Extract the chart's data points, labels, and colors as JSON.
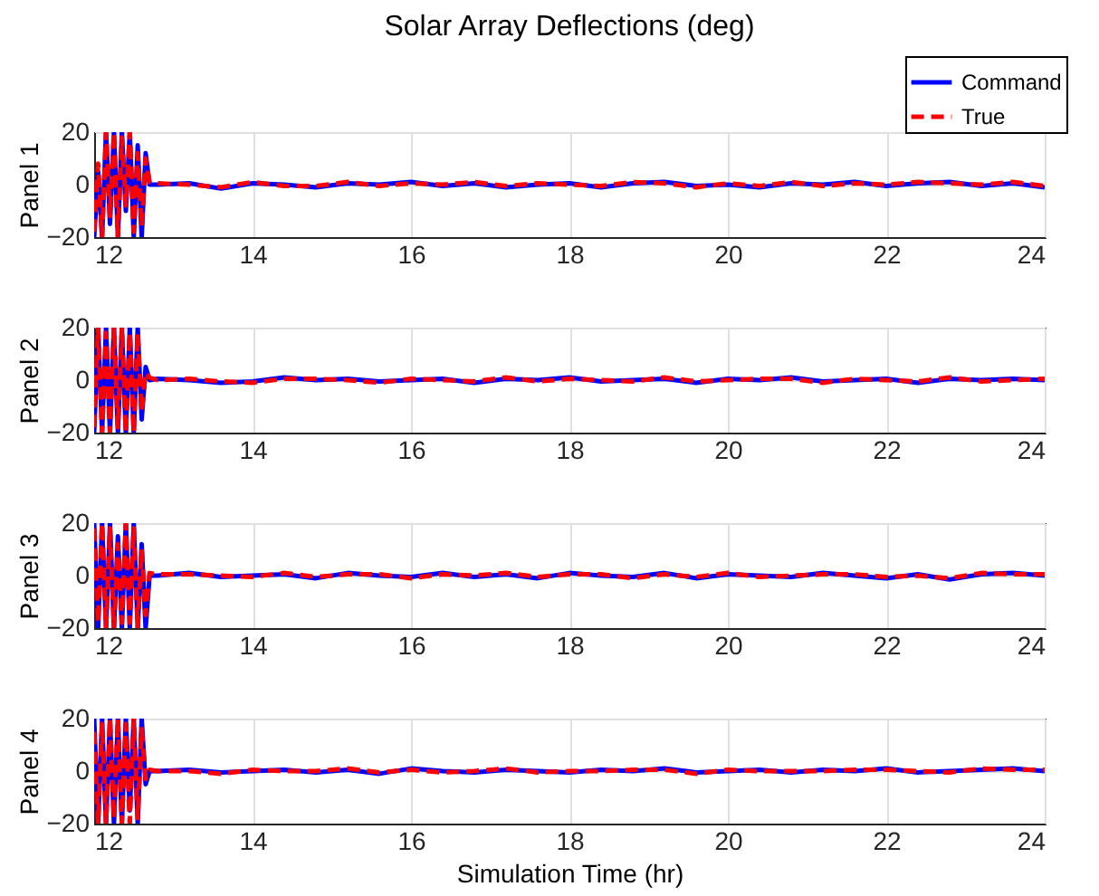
{
  "chart_data": [
    {
      "type": "line",
      "title": "Solar Array Deflections (deg)",
      "ylabel": "Panel 1",
      "legend": "top right",
      "grid": true,
      "xlim": [
        12,
        24
      ],
      "xticks": [
        12,
        14,
        16,
        18,
        20,
        22,
        24
      ],
      "ylim": [
        -20,
        20
      ],
      "yticks": [
        -20,
        0,
        20
      ],
      "x": [
        12,
        12.05,
        12.1,
        12.15,
        12.2,
        12.25,
        12.3,
        12.35,
        12.4,
        12.45,
        12.5,
        12.55,
        12.6,
        12.65,
        12.7,
        12.8,
        13.2,
        13.6,
        14,
        14.4,
        14.8,
        15.2,
        15.6,
        16,
        16.4,
        16.8,
        17.2,
        17.6,
        18,
        18.4,
        18.8,
        19.2,
        19.6,
        20,
        20.4,
        20.8,
        21.2,
        21.6,
        22,
        22.4,
        22.8,
        23.2,
        23.6,
        24
      ],
      "series": [
        {
          "name": "Command",
          "color": "#0000ff",
          "line_style": "solid",
          "values": [
            -20,
            5,
            -20,
            20,
            -15,
            20,
            -20,
            20,
            -10,
            20,
            -20,
            15,
            -20,
            12,
            0,
            0,
            0.5,
            -1.5,
            0.5,
            0,
            -1,
            0.5,
            0,
            1,
            -0.5,
            0.5,
            -1,
            0,
            0.5,
            -1,
            0.5,
            1,
            -0.5,
            0,
            -1,
            0.5,
            0,
            1,
            -0.5,
            0.5,
            1,
            -0.5,
            0.5,
            -1
          ]
        },
        {
          "name": "True",
          "color": "#ff0000",
          "line_style": "dashed",
          "values": [
            -18,
            8,
            -20,
            20,
            -12,
            20,
            -20,
            18,
            -8,
            20,
            -18,
            12,
            -16,
            10,
            1,
            0.5,
            0,
            -1,
            1,
            -0.5,
            -0.5,
            1,
            -0.5,
            0.5,
            0,
            1,
            -0.5,
            0.5,
            0,
            -0.5,
            1,
            0.5,
            -1,
            0.5,
            -0.5,
            1,
            -0.5,
            0.5,
            0,
            1,
            0.5,
            0,
            1,
            -0.5
          ]
        }
      ]
    },
    {
      "type": "line",
      "ylabel": "Panel 2",
      "grid": true,
      "xlim": [
        12,
        24
      ],
      "xticks": [
        12,
        14,
        16,
        18,
        20,
        22,
        24
      ],
      "ylim": [
        -20,
        20
      ],
      "yticks": [
        -20,
        0,
        20
      ],
      "x": [
        12,
        12.05,
        12.1,
        12.15,
        12.2,
        12.25,
        12.3,
        12.35,
        12.4,
        12.45,
        12.5,
        12.55,
        12.6,
        12.65,
        12.7,
        12.8,
        13.2,
        13.6,
        14,
        14.4,
        14.8,
        15.2,
        15.6,
        16,
        16.4,
        16.8,
        17.2,
        17.6,
        18,
        18.4,
        18.8,
        19.2,
        19.6,
        20,
        20.4,
        20.8,
        21.2,
        21.6,
        22,
        22.4,
        22.8,
        23.2,
        23.6,
        24
      ],
      "series": [
        {
          "color": "#0000ff",
          "line_style": "solid",
          "values": [
            -20,
            20,
            -20,
            20,
            -20,
            20,
            -20,
            20,
            -20,
            20,
            -20,
            20,
            -15,
            5,
            0,
            0.5,
            0,
            -1,
            -0.5,
            1,
            0,
            0.5,
            -0.5,
            0,
            0.5,
            -1,
            0.5,
            0,
            1,
            -0.5,
            0,
            0.5,
            -1,
            0.5,
            0,
            1,
            -0.5,
            0,
            0.5,
            -1,
            0.5,
            0,
            0.5,
            0
          ]
        },
        {
          "color": "#ff0000",
          "line_style": "dashed",
          "values": [
            -18,
            20,
            -20,
            18,
            -20,
            20,
            -18,
            20,
            -20,
            18,
            -20,
            18,
            -12,
            3,
            1,
            0,
            0.5,
            -0.5,
            -1,
            0.5,
            0.5,
            0,
            -1,
            0.5,
            0,
            -0.5,
            1,
            -0.5,
            0.5,
            0,
            -0.5,
            1,
            -0.5,
            0,
            0.5,
            0.5,
            -1,
            0.5,
            0,
            -0.5,
            1,
            -0.5,
            0,
            0.5
          ]
        }
      ]
    },
    {
      "type": "line",
      "ylabel": "Panel 3",
      "grid": true,
      "xlim": [
        12,
        24
      ],
      "xticks": [
        12,
        14,
        16,
        18,
        20,
        22,
        24
      ],
      "ylim": [
        -20,
        20
      ],
      "yticks": [
        -20,
        0,
        20
      ],
      "x": [
        12,
        12.05,
        12.1,
        12.15,
        12.2,
        12.25,
        12.3,
        12.35,
        12.4,
        12.45,
        12.5,
        12.55,
        12.6,
        12.65,
        12.7,
        12.8,
        13.2,
        13.6,
        14,
        14.4,
        14.8,
        15.2,
        15.6,
        16,
        16.4,
        16.8,
        17.2,
        17.6,
        18,
        18.4,
        18.8,
        19.2,
        19.6,
        20,
        20.4,
        20.8,
        21.2,
        21.6,
        22,
        22.4,
        22.8,
        23.2,
        23.6,
        24
      ],
      "series": [
        {
          "color": "#0000ff",
          "line_style": "solid",
          "values": [
            20,
            -20,
            20,
            -20,
            20,
            -20,
            15,
            -20,
            20,
            -20,
            20,
            -20,
            12,
            -20,
            0,
            0,
            1,
            -0.5,
            0,
            0.5,
            -1,
            1,
            0,
            -0.5,
            1,
            -0.5,
            0.5,
            -1,
            1,
            0,
            -0.5,
            1,
            -1,
            0.5,
            0,
            -0.5,
            1,
            0,
            -1,
            0.5,
            -1.5,
            0.5,
            1,
            0
          ]
        },
        {
          "color": "#ff0000",
          "line_style": "dashed",
          "values": [
            18,
            -18,
            20,
            -20,
            18,
            -20,
            12,
            -18,
            20,
            -18,
            18,
            -20,
            10,
            -15,
            1,
            0.5,
            0.5,
            0,
            -0.5,
            1,
            -0.5,
            0.5,
            0.5,
            -1,
            0.5,
            0,
            1,
            -0.5,
            0.5,
            0.5,
            -1,
            0.5,
            -0.5,
            1,
            -0.5,
            0,
            0.5,
            0.5,
            -0.5,
            0,
            -1,
            1,
            0.5,
            0.5
          ]
        }
      ]
    },
    {
      "type": "line",
      "ylabel": "Panel 4",
      "xlabel": "Simulation Time (hr)",
      "grid": true,
      "xlim": [
        12,
        24
      ],
      "xticks": [
        12,
        14,
        16,
        18,
        20,
        22,
        24
      ],
      "ylim": [
        -20,
        20
      ],
      "yticks": [
        -20,
        0,
        20
      ],
      "x": [
        12,
        12.05,
        12.1,
        12.15,
        12.2,
        12.25,
        12.3,
        12.35,
        12.4,
        12.45,
        12.5,
        12.55,
        12.6,
        12.65,
        12.7,
        12.8,
        13.2,
        13.6,
        14,
        14.4,
        14.8,
        15.2,
        15.6,
        16,
        16.4,
        16.8,
        17.2,
        17.6,
        18,
        18.4,
        18.8,
        19.2,
        19.6,
        20,
        20.4,
        20.8,
        21.2,
        21.6,
        22,
        22.4,
        22.8,
        23.2,
        23.6,
        24
      ],
      "series": [
        {
          "color": "#0000ff",
          "line_style": "solid",
          "values": [
            20,
            -20,
            20,
            -20,
            20,
            -20,
            20,
            -20,
            20,
            -15,
            20,
            -20,
            20,
            -5,
            0,
            0,
            0.5,
            -0.5,
            0,
            0.5,
            -0.5,
            0.5,
            -1,
            1,
            0,
            -0.5,
            0.5,
            0,
            -0.5,
            0.5,
            0,
            1,
            -0.5,
            0,
            0.5,
            -0.5,
            0.5,
            0,
            1,
            -0.5,
            0,
            0.5,
            1,
            0
          ]
        },
        {
          "color": "#ff0000",
          "line_style": "dashed",
          "values": [
            15,
            -20,
            18,
            -20,
            20,
            -18,
            20,
            -20,
            18,
            -20,
            20,
            -18,
            16,
            -3,
            0.5,
            0,
            0,
            -1,
            0.5,
            0,
            0,
            1,
            -0.5,
            0.5,
            -0.5,
            0,
            1,
            -0.5,
            0,
            0,
            0.5,
            0.5,
            -1,
            0.5,
            0,
            0,
            0,
            0.5,
            0.5,
            0,
            -0.5,
            1,
            0.5,
            0.5
          ]
        }
      ]
    }
  ]
}
